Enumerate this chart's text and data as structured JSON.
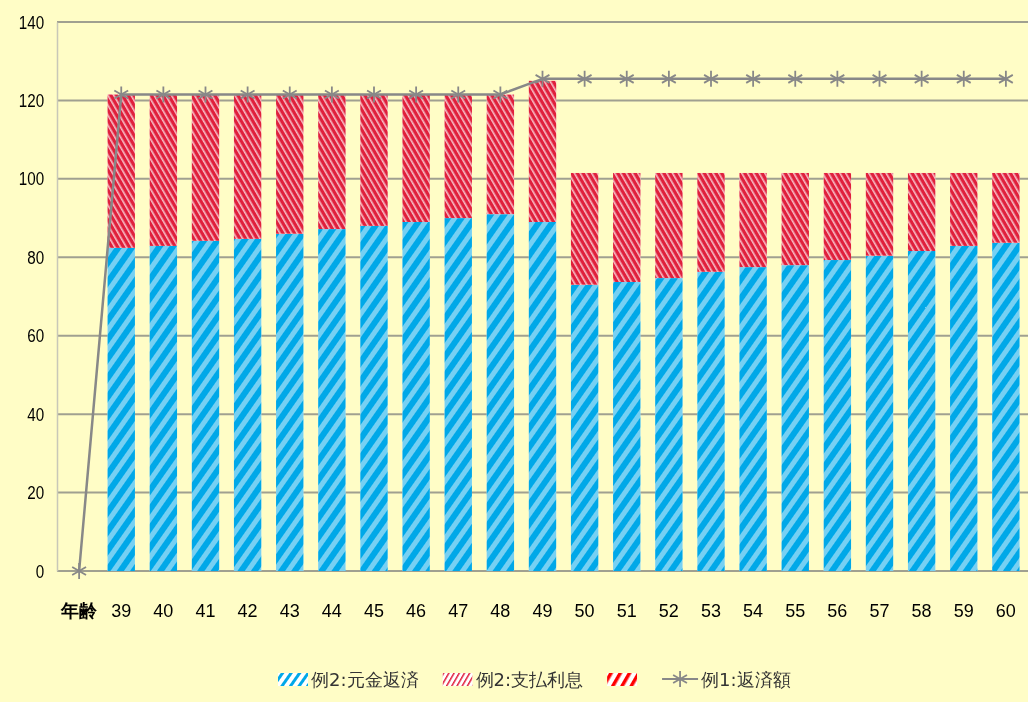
{
  "chart_data": {
    "type": "bar",
    "stacked": true,
    "categories": [
      "年齢",
      "39",
      "40",
      "41",
      "42",
      "43",
      "44",
      "45",
      "46",
      "47",
      "48",
      "49",
      "50",
      "51",
      "52",
      "53",
      "54",
      "55",
      "56",
      "57",
      "58",
      "59",
      "60"
    ],
    "series": [
      {
        "name": "例2:元金返済",
        "color": "#00a8e8",
        "values": [
          null,
          82.4,
          82.9,
          84.2,
          84.7,
          86,
          87.2,
          88,
          89,
          90,
          91,
          89,
          73,
          73.7,
          74.7,
          76.3,
          77.5,
          78,
          79.3,
          80.4,
          81.6,
          82.9,
          83.7
        ]
      },
      {
        "name": "例2:支払利息",
        "color": "#e0203c",
        "values": [
          null,
          39.1,
          38.6,
          37.3,
          36.8,
          35.5,
          34.3,
          33.5,
          32.5,
          31.5,
          30.5,
          36,
          28.5,
          27.8,
          26.8,
          25.2,
          24,
          23.5,
          22.2,
          21.1,
          19.9,
          18.6,
          17.8
        ]
      },
      {
        "color": "#ff0000",
        "values": [
          null,
          null,
          null,
          null,
          null,
          null,
          null,
          null,
          null,
          null,
          null,
          null,
          null,
          null,
          null,
          null,
          null,
          null,
          null,
          null,
          null,
          null,
          null
        ]
      },
      {
        "name": "例1:返済額",
        "type": "line",
        "color": "#888888",
        "marker": "cross",
        "values": [
          0,
          121.5,
          121.5,
          121.5,
          121.5,
          121.5,
          121.5,
          121.5,
          121.5,
          121.5,
          121.5,
          125.5,
          125.5,
          125.5,
          125.5,
          125.5,
          125.5,
          125.5,
          125.5,
          125.5,
          125.5,
          125.5,
          125.5
        ]
      }
    ],
    "ylim": [
      0,
      140
    ],
    "yticks": [
      0,
      20,
      40,
      60,
      80,
      100,
      120,
      140
    ],
    "grid": "y",
    "legend": "bottom"
  }
}
